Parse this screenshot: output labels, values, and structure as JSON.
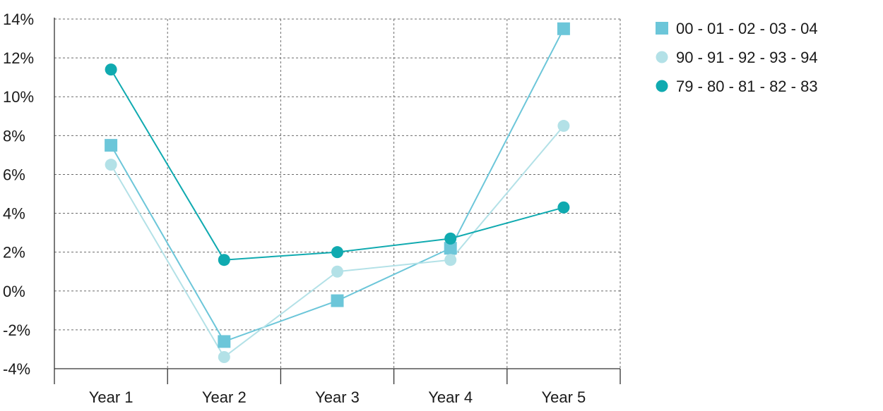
{
  "chart_data": {
    "type": "line",
    "categories": [
      "Year 1",
      "Year 2",
      "Year 3",
      "Year 4",
      "Year 5"
    ],
    "ylim": [
      -4,
      14
    ],
    "yticks": [
      -4,
      -2,
      0,
      2,
      4,
      6,
      8,
      10,
      12,
      14
    ],
    "ytick_labels": [
      "-4%",
      "-2%",
      "0%",
      "2%",
      "4%",
      "6%",
      "8%",
      "10%",
      "12%",
      "14%"
    ],
    "grid": true,
    "legend_position": "top-right",
    "series": [
      {
        "name": "00 - 01 - 02 - 03 - 04",
        "marker": "square",
        "color": "#6cc6d9",
        "values": [
          7.5,
          -2.6,
          -0.5,
          2.2,
          13.5
        ]
      },
      {
        "name": "90 - 91 - 92 - 93 - 94",
        "marker": "circle",
        "color": "#b3e1e7",
        "values": [
          6.5,
          -3.4,
          1.0,
          1.6,
          8.5
        ]
      },
      {
        "name": "79 - 80 - 81 - 82 - 83",
        "marker": "circle",
        "color": "#10aab0",
        "values": [
          11.4,
          1.6,
          2.0,
          2.7,
          4.3
        ]
      }
    ]
  }
}
